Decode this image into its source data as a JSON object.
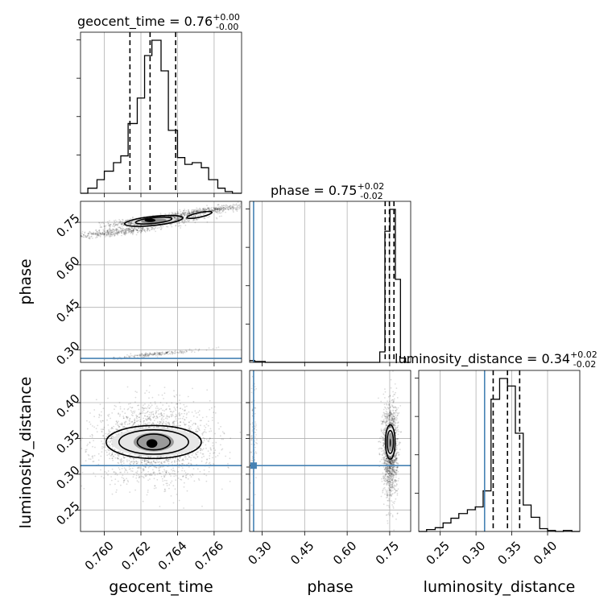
{
  "chart_data": {
    "type": "corner",
    "parameters": [
      "geocent_time",
      "phase",
      "luminosity_distance"
    ],
    "titles": [
      {
        "param": "geocent_time",
        "median": "0.76",
        "plus": "+0.00",
        "minus": "-0.00"
      },
      {
        "param": "phase",
        "median": "0.75",
        "plus": "+0.02",
        "minus": "-0.02"
      },
      {
        "param": "luminosity_distance",
        "median": "0.34",
        "plus": "+0.02",
        "minus": "-0.02"
      }
    ],
    "ranges": {
      "geocent_time": [
        0.7587,
        0.7675
      ],
      "phase": [
        0.256,
        0.824
      ],
      "luminosity_distance": [
        0.22,
        0.445
      ]
    },
    "ticks": {
      "geocent_time": {
        "values": [
          0.76,
          0.762,
          0.764,
          0.766
        ],
        "labels": [
          "0.760",
          "0.762",
          "0.764",
          "0.766"
        ]
      },
      "phase": {
        "values": [
          0.3,
          0.45,
          0.6,
          0.75
        ],
        "labels": [
          "0.30",
          "0.45",
          "0.60",
          "0.75"
        ]
      },
      "luminosity_distance": {
        "values": [
          0.25,
          0.3,
          0.35,
          0.4
        ],
        "labels": [
          "0.25",
          "0.30",
          "0.35",
          "0.40"
        ]
      }
    },
    "truths": {
      "phase": 0.27,
      "luminosity_distance": 0.312
    },
    "quantiles": {
      "geocent_time": [
        0.7614,
        0.7625,
        0.7639
      ],
      "phase": [
        0.734,
        0.749,
        0.765
      ],
      "luminosity_distance": [
        0.324,
        0.344,
        0.361
      ]
    },
    "histograms": {
      "geocent_time": {
        "edges": [
          0.7587,
          0.7591,
          0.7596,
          0.76,
          0.7605,
          0.7609,
          0.7613,
          0.7618,
          0.7622,
          0.7626,
          0.7631,
          0.7635,
          0.764,
          0.7644,
          0.7648,
          0.7653,
          0.7657,
          0.7662,
          0.7666,
          0.767,
          0.7675
        ],
        "counts": [
          0,
          6,
          16,
          26,
          36,
          44,
          82,
          112,
          162,
          180,
          144,
          74,
          42,
          34,
          36,
          30,
          16,
          6,
          2,
          0
        ]
      },
      "phase": {
        "edges": [
          0.256,
          0.274,
          0.293,
          0.311,
          0.33,
          0.348,
          0.366,
          0.385,
          0.403,
          0.421,
          0.44,
          0.458,
          0.476,
          0.495,
          0.513,
          0.531,
          0.55,
          0.568,
          0.586,
          0.605,
          0.623,
          0.641,
          0.66,
          0.678,
          0.696,
          0.715,
          0.733,
          0.751,
          0.77,
          0.788,
          0.806,
          0.824
        ],
        "counts": [
          2,
          1,
          1,
          0,
          0,
          0,
          0,
          0,
          0,
          0,
          0,
          0,
          0,
          0,
          0,
          0,
          0,
          0,
          0,
          0,
          0,
          0,
          0,
          0,
          0,
          12,
          150,
          175,
          95,
          5,
          0
        ]
      },
      "luminosity_distance": {
        "edges": [
          0.22,
          0.231,
          0.243,
          0.254,
          0.265,
          0.276,
          0.288,
          0.299,
          0.31,
          0.321,
          0.333,
          0.344,
          0.355,
          0.366,
          0.377,
          0.389,
          0.4,
          0.411,
          0.422,
          0.434,
          0.445
        ],
        "counts": [
          0,
          2,
          4,
          9,
          14,
          19,
          23,
          26,
          43,
          140,
          162,
          154,
          104,
          28,
          15,
          3,
          1,
          0,
          1,
          0
        ]
      }
    }
  }
}
